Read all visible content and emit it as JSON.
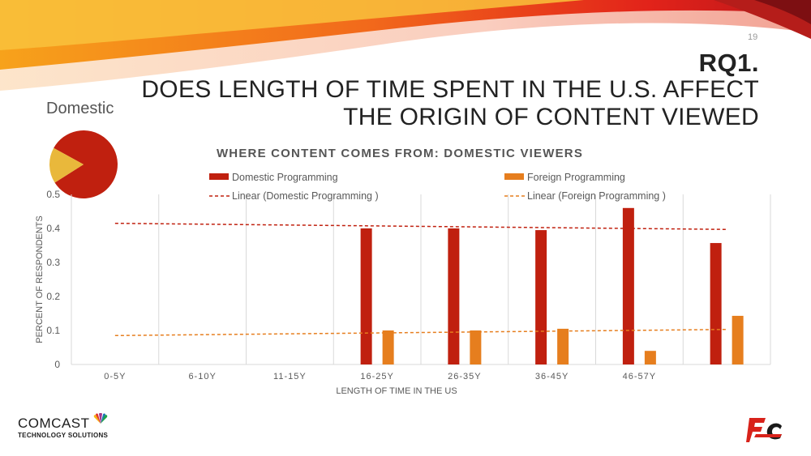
{
  "slide": {
    "page_number": "19",
    "title_main": "RQ1.",
    "title_line1": "DOES LENGTH OF TIME SPENT IN THE U.S. AFFECT",
    "title_line2": "THE ORIGIN OF CONTENT VIEWED",
    "pie_label": "Domestic",
    "logo_name": "COMCAST",
    "logo_sub": "TECHNOLOGY SOLUTIONS"
  },
  "colors": {
    "domestic": "#c0200f",
    "foreign": "#e67e1e",
    "pie_main": "#c0200f",
    "pie_slice": "#e9b83b"
  },
  "icons": {
    "peacock": "nbc-peacock-icon",
    "fc_logo": "fc-logo-icon"
  },
  "pie_data": {
    "values": [
      0.83,
      0.17
    ]
  },
  "chart_data": {
    "type": "bar",
    "title": "WHERE CONTENT COMES FROM: DOMESTIC VIEWERS",
    "xlabel": "LENGTH OF TIME IN THE US",
    "ylabel": "PERCENT OF RESPONDENTS",
    "categories": [
      "0-5Y",
      "6-10Y",
      "11-15Y",
      "16-25Y",
      "26-35Y",
      "36-45Y",
      "46-57Y",
      ""
    ],
    "ylim": [
      0,
      0.5
    ],
    "yticks": [
      {
        "v": 0,
        "label": "0"
      },
      {
        "v": 0.1,
        "label": "0.1"
      },
      {
        "v": 0.2,
        "label": "0.2"
      },
      {
        "v": 0.3,
        "label": "0.3"
      },
      {
        "v": 0.4,
        "label": "0.4"
      },
      {
        "v": 0.5,
        "label": "0.5"
      }
    ],
    "series": [
      {
        "name": "Domestic Programming",
        "values": [
          null,
          null,
          null,
          0.4,
          0.4,
          0.395,
          0.46,
          0.357
        ]
      },
      {
        "name": "Foreign  Programming",
        "values": [
          null,
          null,
          null,
          0.1,
          0.1,
          0.105,
          0.04,
          0.143
        ]
      }
    ],
    "trendlines": [
      {
        "name": "Linear (Domestic Programming )",
        "start": 0.415,
        "end": 0.397
      },
      {
        "name": "Linear (Foreign  Programming )",
        "start": 0.085,
        "end": 0.103
      }
    ],
    "grid": "vertical",
    "legend": "top"
  }
}
